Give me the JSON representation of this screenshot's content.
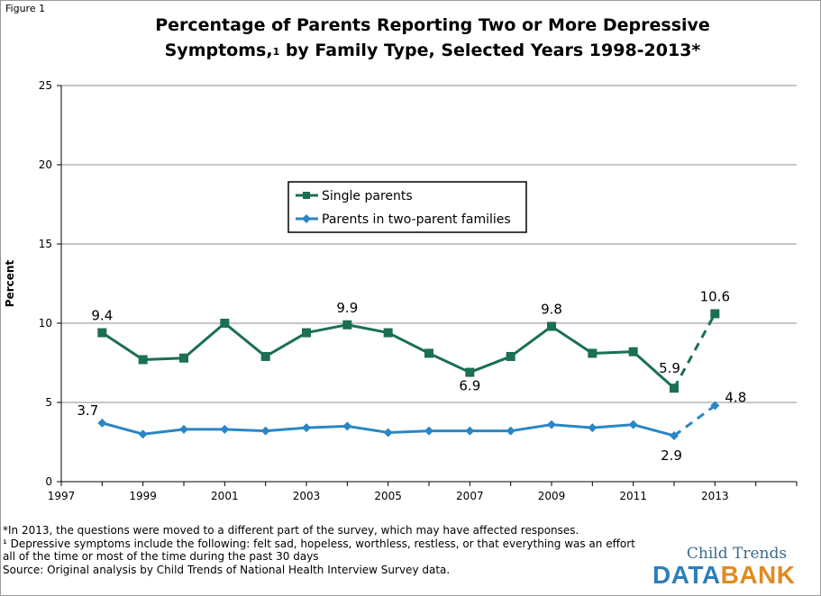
{
  "figure_label": "Figure 1",
  "title_line1": "Percentage of Parents Reporting Two or More Depressive",
  "title_line2_a": "Symptoms,",
  "title_line2_sup": "1",
  "title_line2_b": " by Family Type, Selected Years 1998-2013*",
  "colors": {
    "single": "#1a6f54",
    "two_parent": "#2b86c5",
    "grid": "#8c8c8c"
  },
  "chart_data": {
    "type": "line",
    "title": "Percentage of Parents Reporting Two or More Depressive Symptoms,1 by Family Type, Selected Years 1998-2013*",
    "xlabel": "",
    "ylabel": "Percent",
    "xlim": [
      1997,
      2015
    ],
    "ylim": [
      0,
      25
    ],
    "x_ticks": [
      1997,
      1999,
      2001,
      2003,
      2005,
      2007,
      2009,
      2011,
      2013
    ],
    "y_ticks": [
      0,
      5,
      10,
      15,
      20,
      25
    ],
    "grid": true,
    "legend_position": "center-left",
    "series": [
      {
        "name": "Single parents",
        "marker": "square",
        "x": [
          1998,
          1999,
          2000,
          2001,
          2002,
          2003,
          2004,
          2005,
          2006,
          2007,
          2008,
          2009,
          2010,
          2011,
          2012,
          2013
        ],
        "values": [
          9.4,
          7.7,
          7.8,
          10.0,
          7.9,
          9.4,
          9.9,
          9.4,
          8.1,
          6.9,
          7.9,
          9.8,
          8.1,
          8.2,
          5.9,
          10.6
        ],
        "dashed_from": 2012,
        "labels": [
          {
            "x": 1998,
            "text": "9.4"
          },
          {
            "x": 2004,
            "text": "9.9"
          },
          {
            "x": 2007,
            "text": "6.9"
          },
          {
            "x": 2009,
            "text": "9.8"
          },
          {
            "x": 2012,
            "text": "5.9"
          },
          {
            "x": 2013,
            "text": "10.6"
          }
        ]
      },
      {
        "name": "Parents in two-parent families",
        "marker": "diamond",
        "x": [
          1998,
          1999,
          2000,
          2001,
          2002,
          2003,
          2004,
          2005,
          2006,
          2007,
          2008,
          2009,
          2010,
          2011,
          2012,
          2013
        ],
        "values": [
          3.7,
          3.0,
          3.3,
          3.3,
          3.2,
          3.4,
          3.5,
          3.1,
          3.2,
          3.2,
          3.2,
          3.6,
          3.4,
          3.6,
          2.9,
          4.8
        ],
        "dashed_from": 2012,
        "labels": [
          {
            "x": 1998,
            "text": "3.7"
          },
          {
            "x": 2012,
            "text": "2.9"
          },
          {
            "x": 2013,
            "text": "4.8"
          }
        ]
      }
    ]
  },
  "notes": [
    "*In 2013, the questions were moved to a different part of the survey, which may have affected responses.",
    "¹ Depressive symptoms include the following: felt sad, hopeless, worthless, restless, or that everything was an effort",
    "all of the time or most of the time during the past 30 days",
    "Source: Original analysis by Child Trends of National Health Interview Survey data."
  ],
  "logo": {
    "top": "Child Trends",
    "data": "DATA",
    "bank": "BANK"
  }
}
